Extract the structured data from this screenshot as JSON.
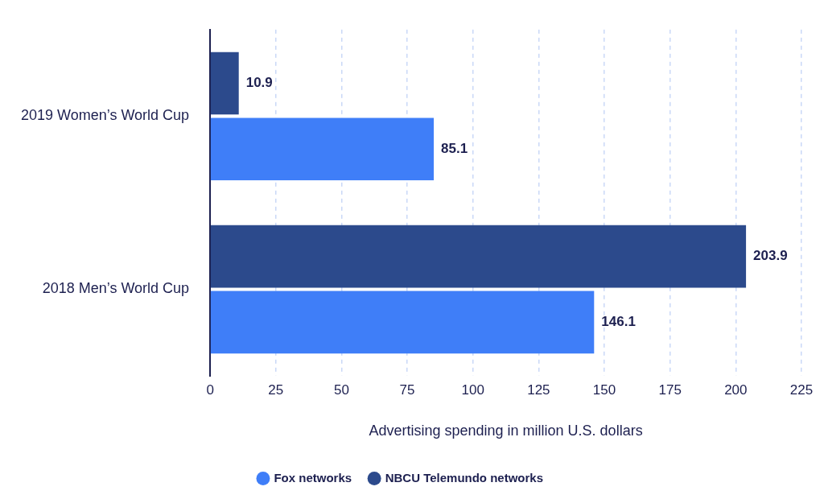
{
  "chart_data": {
    "type": "bar",
    "orientation": "horizontal",
    "categories": [
      "2019 Women’s World Cup",
      "2018 Men’s World Cup"
    ],
    "series": [
      {
        "name": "NBCU Telemundo networks",
        "color": "#2c4a8c",
        "values": [
          10.9,
          203.9
        ]
      },
      {
        "name": "Fox networks",
        "color": "#3f7ef8",
        "values": [
          85.1,
          146.1
        ]
      }
    ],
    "xlabel": "Advertising spending in million U.S. dollars",
    "xlim": [
      0,
      225
    ],
    "xticks": [
      0,
      25,
      50,
      75,
      100,
      125,
      150,
      175,
      200,
      225
    ],
    "grid": true,
    "data_labels": true,
    "legend": "bottom"
  }
}
